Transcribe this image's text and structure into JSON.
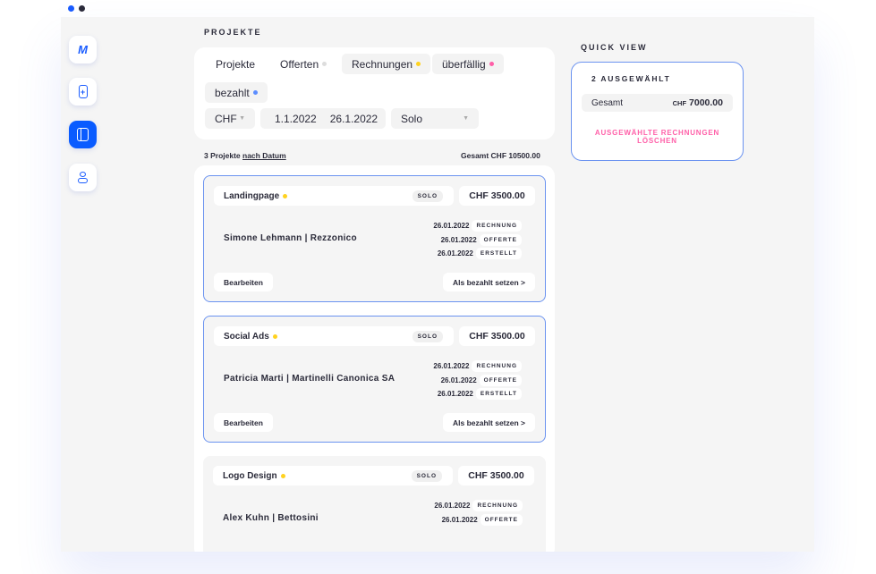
{
  "window": {
    "dot_colors": [
      "#1a5cff",
      "#2b2b3a"
    ]
  },
  "sidebar": {
    "items": [
      {
        "name": "logo",
        "glyph": "M"
      },
      {
        "name": "add-document",
        "glyph": "+"
      },
      {
        "name": "projects",
        "glyph": "▯",
        "active": true
      },
      {
        "name": "profile",
        "glyph": "8"
      }
    ]
  },
  "projects": {
    "heading": "PROJEKTE",
    "tabs": [
      {
        "label": "Projekte"
      },
      {
        "label": "Offerten",
        "dot": "#dddddd"
      },
      {
        "label": "Rechnungen",
        "dot": "#ffd21f",
        "active": true
      },
      {
        "label": "überfällig",
        "dot": "#ff5fa8",
        "active": true
      },
      {
        "label": "bezahlt",
        "dot": "#5b8dff",
        "active": true
      }
    ],
    "currency": "CHF",
    "date_from": "1.1.2022",
    "date_to": "26.1.2022",
    "type": "Solo",
    "count_text": "3 Projekte",
    "sort_link": "nach Datum",
    "total": "Gesamt CHF 10500.00",
    "cards": [
      {
        "title": "Landingpage",
        "tag": "SOLO",
        "amount": "CHF 3500.00",
        "client": "Simone Lehmann | Rezzonico",
        "dates": [
          [
            "26.01.2022",
            "RECHNUNG"
          ],
          [
            "26.01.2022",
            "OFFERTE"
          ],
          [
            "26.01.2022",
            "ERSTELLT"
          ]
        ],
        "edit": "Bearbeiten",
        "action": "Als bezahlt setzen >",
        "selected": true
      },
      {
        "title": "Social Ads",
        "tag": "SOLO",
        "amount": "CHF 3500.00",
        "client": "Patricia Marti | Martinelli Canonica SA",
        "dates": [
          [
            "26.01.2022",
            "RECHNUNG"
          ],
          [
            "26.01.2022",
            "OFFERTE"
          ],
          [
            "26.01.2022",
            "ERSTELLT"
          ]
        ],
        "edit": "Bearbeiten",
        "action": "Als bezahlt setzen >",
        "selected": true
      },
      {
        "title": "Logo Design",
        "tag": "SOLO",
        "amount": "CHF 3500.00",
        "client": "Alex Kuhn | Bettosini",
        "dates": [
          [
            "26.01.2022",
            "RECHNUNG"
          ],
          [
            "26.01.2022",
            "OFFERTE"
          ]
        ],
        "selected": false
      }
    ]
  },
  "quick_view": {
    "heading": "QUICK VIEW",
    "selected": "2 AUSGEWÄHLT",
    "total_label": "Gesamt",
    "currency": "CHF",
    "total": "7000.00",
    "delete": "AUSGEWÄHLTE RECHNUNGEN LÖSCHEN"
  },
  "colors": {
    "accent": "#0a5cff",
    "status_dot": "#ffd21f",
    "danger": "#ff5fa8"
  }
}
